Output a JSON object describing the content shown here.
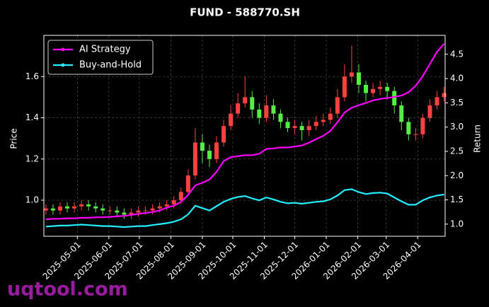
{
  "chart_data": {
    "type": "candlestick",
    "title": "FUND - 588770.SH",
    "ylabel": "Price",
    "y2label": "Return",
    "watermark": "uqtool.com",
    "up_color": "#ff4040",
    "down_color": "#55ee44",
    "grid": true,
    "legend": "upper left",
    "xlim": [
      "2025-03-29",
      "2026-04-28"
    ],
    "xticks": [
      "2025-05-01",
      "2025-06-01",
      "2025-07-01",
      "2025-08-01",
      "2025-09-01",
      "2025-10-01",
      "2025-11-01",
      "2025-12-01",
      "2026-01-01",
      "2026-02-01",
      "2026-03-01",
      "2026-04-01"
    ],
    "ylim": [
      0.825,
      1.8
    ],
    "yticks": [
      {
        "value": 1,
        "label": "1.0"
      },
      1.2,
      1.4,
      1.6
    ],
    "y2lim": [
      0.75,
      4.89
    ],
    "y2ticks": [
      {
        "value": 1,
        "label": "1.0"
      },
      1.5,
      {
        "value": 2,
        "label": "2.0"
      },
      2.5,
      {
        "value": 3,
        "label": "3.0"
      },
      3.5,
      {
        "value": 4,
        "label": "4.0"
      },
      4.5
    ],
    "x": [
      "2025-03-31",
      "2025-04-07",
      "2025-04-14",
      "2025-04-21",
      "2025-04-28",
      "2025-05-05",
      "2025-05-12",
      "2025-05-19",
      "2025-05-26",
      "2025-06-02",
      "2025-06-09",
      "2025-06-16",
      "2025-06-23",
      "2025-06-30",
      "2025-07-07",
      "2025-07-14",
      "2025-07-21",
      "2025-07-28",
      "2025-08-04",
      "2025-08-11",
      "2025-08-18",
      "2025-08-25",
      "2025-09-01",
      "2025-09-08",
      "2025-09-15",
      "2025-09-22",
      "2025-09-29",
      "2025-10-06",
      "2025-10-13",
      "2025-10-20",
      "2025-10-27",
      "2025-11-03",
      "2025-11-10",
      "2025-11-17",
      "2025-11-24",
      "2025-12-01",
      "2025-12-08",
      "2025-12-15",
      "2025-12-22",
      "2025-12-29",
      "2026-01-05",
      "2026-01-12",
      "2026-01-19",
      "2026-01-26",
      "2026-02-02",
      "2026-02-09",
      "2026-02-16",
      "2026-02-23",
      "2026-03-02",
      "2026-03-09",
      "2026-03-16",
      "2026-03-23",
      "2026-03-30",
      "2026-04-06",
      "2026-04-13",
      "2026-04-20",
      "2026-04-27"
    ],
    "open": [
      0.95,
      0.96,
      0.95,
      0.97,
      0.96,
      0.97,
      0.98,
      0.97,
      0.96,
      0.95,
      0.95,
      0.94,
      0.93,
      0.94,
      0.95,
      0.95,
      0.96,
      0.97,
      0.98,
      1.0,
      1.04,
      1.12,
      1.28,
      1.24,
      1.2,
      1.28,
      1.36,
      1.42,
      1.47,
      1.5,
      1.44,
      1.4,
      1.46,
      1.42,
      1.38,
      1.35,
      1.36,
      1.34,
      1.36,
      1.38,
      1.39,
      1.42,
      1.5,
      1.6,
      1.62,
      1.56,
      1.52,
      1.54,
      1.55,
      1.53,
      1.46,
      1.38,
      1.32,
      1.32,
      1.4,
      1.46,
      1.5
    ],
    "high": [
      0.98,
      0.98,
      0.99,
      0.99,
      0.99,
      1.0,
      1.0,
      0.99,
      0.98,
      0.97,
      0.97,
      0.96,
      0.96,
      0.97,
      0.97,
      0.98,
      0.99,
      1.0,
      1.02,
      1.06,
      1.15,
      1.35,
      1.32,
      1.27,
      1.31,
      1.39,
      1.46,
      1.52,
      1.6,
      1.53,
      1.47,
      1.51,
      1.49,
      1.44,
      1.4,
      1.39,
      1.38,
      1.39,
      1.41,
      1.42,
      1.45,
      1.54,
      1.66,
      1.75,
      1.66,
      1.58,
      1.57,
      1.58,
      1.57,
      1.55,
      1.48,
      1.4,
      1.35,
      1.42,
      1.49,
      1.53,
      1.55
    ],
    "low": [
      0.93,
      0.93,
      0.93,
      0.94,
      0.94,
      0.95,
      0.95,
      0.94,
      0.93,
      0.93,
      0.92,
      0.91,
      0.91,
      0.92,
      0.93,
      0.93,
      0.94,
      0.95,
      0.96,
      0.98,
      1.02,
      1.1,
      1.18,
      1.16,
      1.18,
      1.26,
      1.34,
      1.4,
      1.45,
      1.4,
      1.37,
      1.38,
      1.39,
      1.35,
      1.33,
      1.32,
      1.29,
      1.31,
      1.34,
      1.36,
      1.37,
      1.4,
      1.48,
      1.57,
      1.52,
      1.48,
      1.5,
      1.51,
      1.49,
      1.42,
      1.34,
      1.29,
      1.29,
      1.3,
      1.38,
      1.44,
      1.48
    ],
    "close": [
      0.96,
      0.95,
      0.97,
      0.96,
      0.97,
      0.98,
      0.97,
      0.96,
      0.95,
      0.95,
      0.94,
      0.93,
      0.94,
      0.95,
      0.95,
      0.96,
      0.97,
      0.98,
      1.0,
      1.04,
      1.12,
      1.28,
      1.24,
      1.2,
      1.28,
      1.36,
      1.42,
      1.47,
      1.5,
      1.44,
      1.4,
      1.46,
      1.42,
      1.38,
      1.35,
      1.36,
      1.34,
      1.36,
      1.38,
      1.39,
      1.42,
      1.5,
      1.6,
      1.62,
      1.56,
      1.52,
      1.54,
      1.55,
      1.53,
      1.46,
      1.38,
      1.32,
      1.32,
      1.4,
      1.46,
      1.5,
      1.52
    ],
    "series": [
      {
        "name": "AI Strategy",
        "color": "#ff00ff",
        "axis": "y2",
        "values": [
          1.1,
          1.11,
          1.11,
          1.12,
          1.12,
          1.13,
          1.13,
          1.14,
          1.14,
          1.15,
          1.16,
          1.17,
          1.19,
          1.21,
          1.23,
          1.25,
          1.28,
          1.34,
          1.38,
          1.46,
          1.6,
          1.8,
          1.85,
          1.92,
          2.08,
          2.3,
          2.38,
          2.4,
          2.42,
          2.42,
          2.45,
          2.55,
          2.56,
          2.58,
          2.58,
          2.6,
          2.62,
          2.68,
          2.75,
          2.82,
          2.92,
          3.1,
          3.3,
          3.4,
          3.45,
          3.5,
          3.55,
          3.58,
          3.6,
          3.62,
          3.65,
          3.72,
          3.85,
          4.05,
          4.3,
          4.55,
          4.72
        ]
      },
      {
        "name": "Buy-and-Hold",
        "color": "#22eeff",
        "axis": "y2",
        "values": [
          0.95,
          0.96,
          0.97,
          0.97,
          0.98,
          0.99,
          0.98,
          0.97,
          0.96,
          0.96,
          0.95,
          0.94,
          0.95,
          0.96,
          0.96,
          0.98,
          1.0,
          1.02,
          1.05,
          1.1,
          1.2,
          1.38,
          1.33,
          1.28,
          1.37,
          1.46,
          1.52,
          1.56,
          1.58,
          1.53,
          1.49,
          1.55,
          1.51,
          1.46,
          1.43,
          1.44,
          1.42,
          1.44,
          1.46,
          1.47,
          1.51,
          1.59,
          1.7,
          1.72,
          1.66,
          1.62,
          1.64,
          1.65,
          1.63,
          1.55,
          1.47,
          1.4,
          1.4,
          1.49,
          1.55,
          1.59,
          1.61
        ]
      }
    ]
  }
}
